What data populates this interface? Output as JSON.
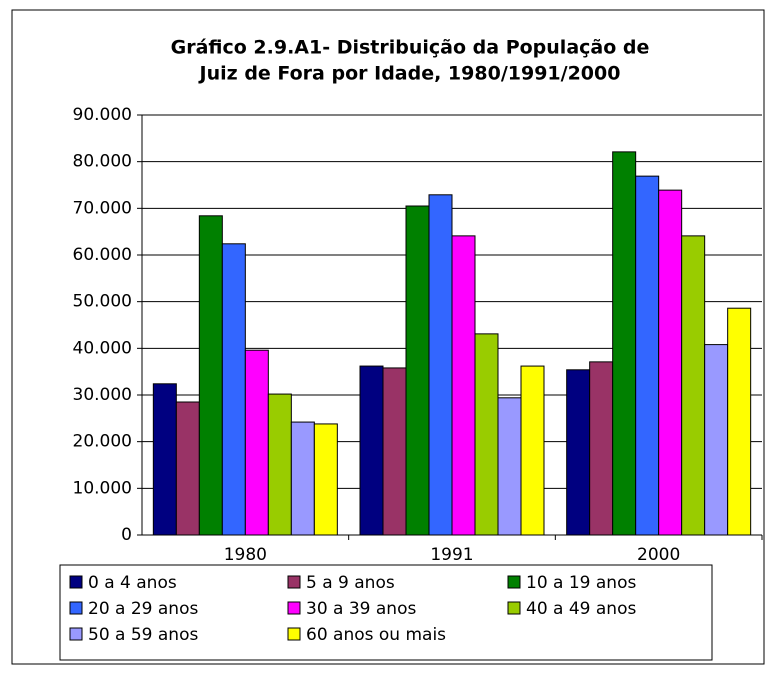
{
  "chart_data": {
    "type": "bar",
    "title": [
      "Gráfico 2.9.A1- Distribuição da População de",
      "Juiz de Fora por Idade, 1980/1991/2000"
    ],
    "categories": [
      "1980",
      "1991",
      "2000"
    ],
    "series": [
      {
        "name": "0 a 4 anos",
        "color": "#000080",
        "values": [
          32400,
          36200,
          35400
        ]
      },
      {
        "name": "5 a 9 anos",
        "color": "#993366",
        "values": [
          28500,
          35800,
          37100
        ]
      },
      {
        "name": "10 a 19 anos",
        "color": "#008000",
        "values": [
          68400,
          70500,
          82100
        ]
      },
      {
        "name": "20 a 29 anos",
        "color": "#3366ff",
        "values": [
          62400,
          72900,
          76900
        ]
      },
      {
        "name": "30 a 39 anos",
        "color": "#ff00ff",
        "values": [
          39600,
          64100,
          73900
        ]
      },
      {
        "name": "40 a 49 anos",
        "color": "#99cc00",
        "values": [
          30200,
          43100,
          64100
        ]
      },
      {
        "name": "50 a 59 anos",
        "color": "#9999ff",
        "values": [
          24200,
          29400,
          40800
        ]
      },
      {
        "name": "60 anos ou mais",
        "color": "#ffff00",
        "values": [
          23800,
          36200,
          48600
        ]
      }
    ],
    "ylim": [
      0,
      90000
    ],
    "yticks": [
      0,
      {
        "value": 10000,
        "label": "10.000"
      },
      {
        "value": 20000,
        "label": "20.000"
      },
      {
        "value": 30000,
        "label": "30.000"
      },
      {
        "value": 40000,
        "label": "40.000"
      },
      {
        "value": 50000,
        "label": "50.000"
      },
      {
        "value": 60000,
        "label": "60.000"
      },
      {
        "value": 70000,
        "label": "70.000"
      },
      {
        "value": 80000,
        "label": "80.000"
      },
      {
        "value": 90000,
        "label": "90.000"
      }
    ],
    "grid": true
  }
}
